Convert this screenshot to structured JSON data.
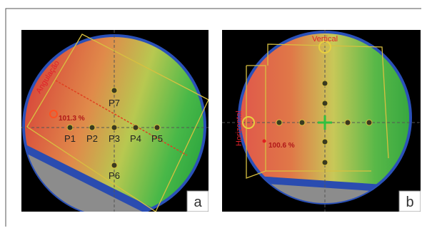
{
  "panels": [
    {
      "letter": "a",
      "angle_label": "Angulação",
      "dose_label": "101.3 %",
      "points": [
        "P1",
        "P2",
        "P3",
        "P4",
        "P5",
        "P6",
        "P7"
      ]
    },
    {
      "letter": "b",
      "vertical_label": "Vertical",
      "horizontal_label": "Horizontal",
      "dose_label": "100.6 %"
    }
  ]
}
